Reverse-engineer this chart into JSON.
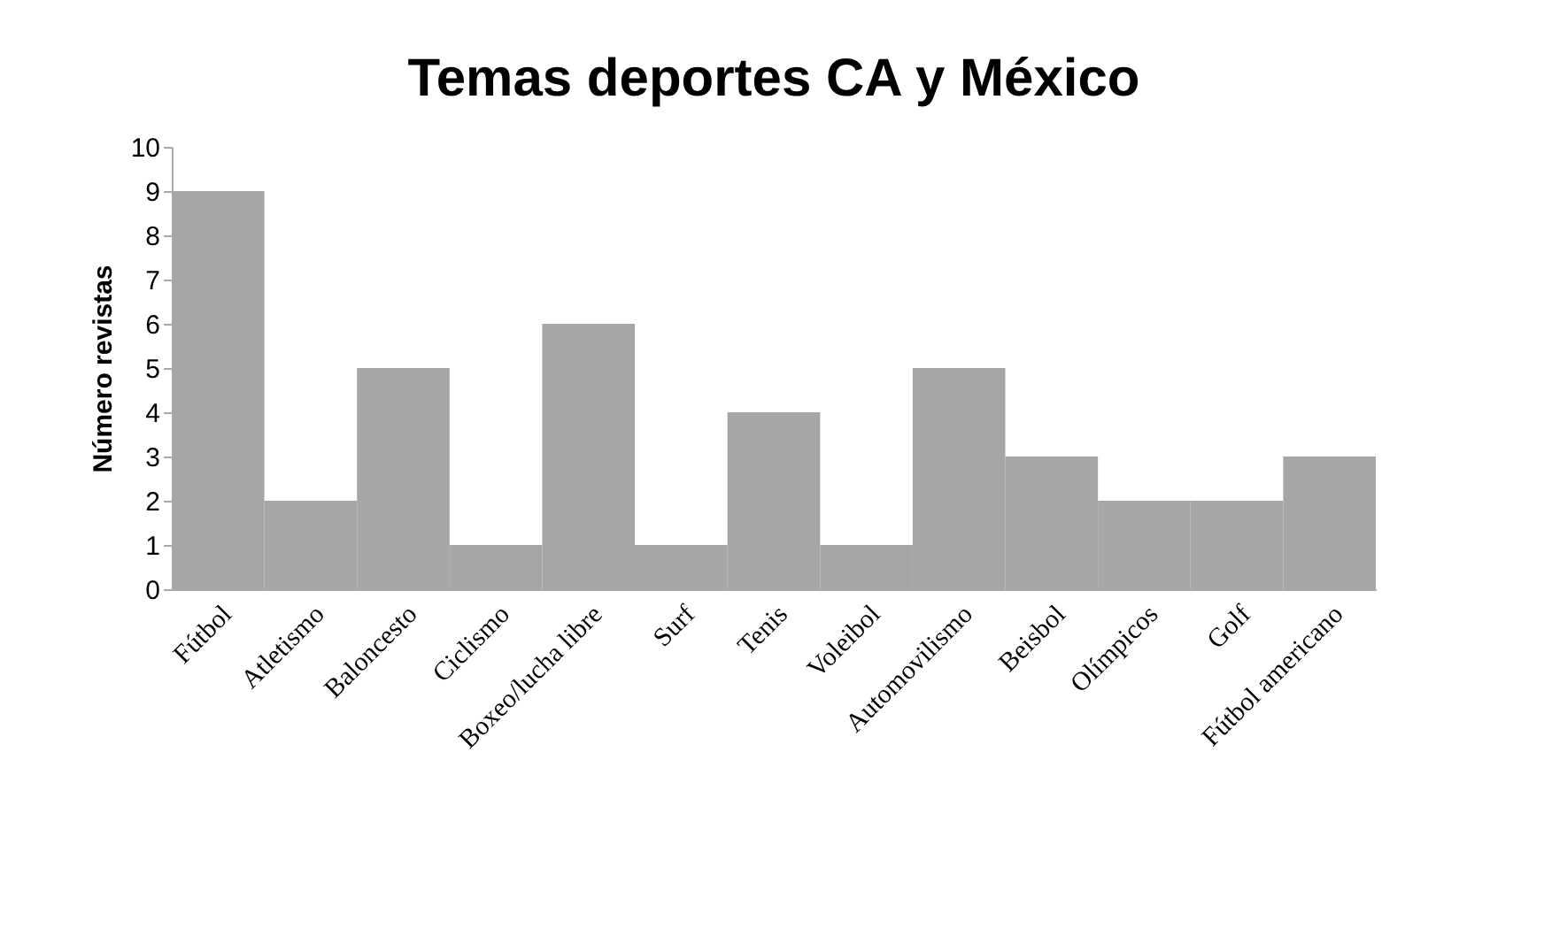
{
  "chart_data": {
    "type": "bar",
    "title": "Temas deportes CA y México",
    "ylabel": "Número revistas",
    "categories": [
      "Fútbol",
      "Atletismo",
      "Baloncesto",
      "Ciclismo",
      "Boxeo/lucha libre",
      "Surf",
      "Tenis",
      "Voleibol",
      "Automovilismo",
      "Beisbol",
      "Olímpicos",
      "Golf",
      "Fútbol americano"
    ],
    "values": [
      9,
      2,
      5,
      1,
      6,
      1,
      4,
      1,
      5,
      3,
      2,
      2,
      3
    ],
    "color": "#a6a6a6",
    "ylim": [
      0,
      10
    ],
    "yticks": [
      0,
      1,
      2,
      3,
      4,
      5,
      6,
      7,
      8,
      9,
      10
    ],
    "grid": false
  }
}
